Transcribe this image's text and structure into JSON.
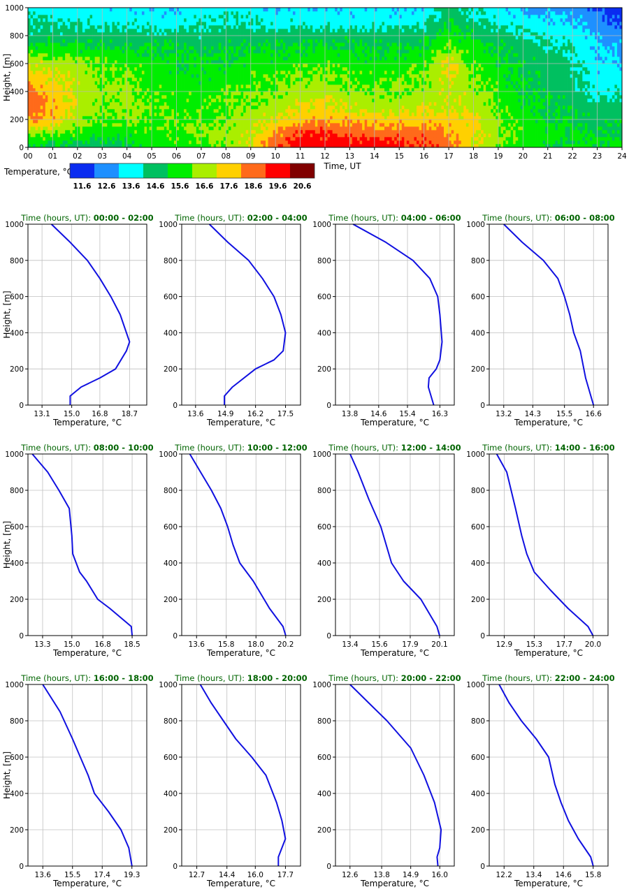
{
  "heatmap": {
    "ylabel": "Height, [m]",
    "xlabel": "Time, UT",
    "x_ticks": [
      "00",
      "01",
      "02",
      "03",
      "04",
      "05",
      "06",
      "07",
      "08",
      "09",
      "10",
      "11",
      "12",
      "13",
      "14",
      "15",
      "16",
      "17",
      "18",
      "19",
      "20",
      "21",
      "22",
      "23",
      "24"
    ],
    "y_ticks": [
      "0",
      "200",
      "400",
      "600",
      "800",
      "1000"
    ],
    "colorbar_label": "Temperature, °C",
    "colorbar_ticks": [
      "11.6",
      "12.6",
      "13.6",
      "14.6",
      "15.6",
      "16.6",
      "17.6",
      "18.6",
      "19.6",
      "20.6"
    ],
    "colors": [
      "#0a2cf0",
      "#1e90ff",
      "#00ffff",
      "#00c060",
      "#00ee00",
      "#aaee00",
      "#ffd000",
      "#ff6a1a",
      "#ff0000",
      "#800000"
    ]
  },
  "profiles_common": {
    "title_prefix": "Time (hours, UT):",
    "xlabel": "Temperature, °C",
    "ylabel": "Height, [m]",
    "y_ticks": [
      "0",
      "200",
      "400",
      "600",
      "800",
      "1000"
    ],
    "line_color": "#1010e0",
    "title_color": "#006400"
  },
  "chart_data": [
    {
      "type": "heatmap",
      "title": "",
      "xlabel": "Time, UT",
      "ylabel": "Height, [m]",
      "xlim": [
        0,
        24
      ],
      "ylim": [
        0,
        1000
      ],
      "colorbar": {
        "label": "Temperature, °C",
        "levels": [
          11.6,
          12.6,
          13.6,
          14.6,
          15.6,
          16.6,
          17.6,
          18.6,
          19.6,
          20.6
        ]
      },
      "heights": [
        0,
        100,
        200,
        300,
        400,
        500,
        600,
        700,
        800,
        900,
        1000
      ],
      "hours": [
        0,
        1,
        2,
        3,
        4,
        5,
        6,
        7,
        8,
        9,
        10,
        11,
        12,
        13,
        14,
        15,
        16,
        17,
        18,
        19,
        20,
        21,
        22,
        23,
        24
      ],
      "values": [
        [
          15.0,
          14.8,
          14.5,
          14.5,
          14.8,
          15.6,
          15.6,
          15.8,
          16.2,
          17.2,
          19.2,
          19.7,
          19.8,
          19.8,
          19.7,
          19.6,
          19.2,
          18.5,
          17.2,
          16.4,
          15.5,
          15.3,
          15.2,
          15.4,
          15.6
        ],
        [
          16.2,
          16.3,
          15.8,
          15.5,
          15.6,
          15.8,
          15.9,
          16.2,
          16.5,
          17.0,
          18.0,
          19.0,
          19.3,
          19.0,
          18.7,
          18.6,
          18.7,
          18.2,
          17.4,
          16.5,
          15.8,
          15.4,
          15.2,
          15.0,
          15.0
        ],
        [
          18.5,
          17.8,
          16.6,
          16.0,
          16.2,
          16.0,
          15.9,
          16.0,
          16.3,
          16.6,
          17.0,
          17.8,
          18.0,
          17.8,
          17.6,
          17.6,
          17.7,
          17.5,
          17.3,
          16.3,
          15.6,
          15.2,
          15.0,
          14.8,
          14.8
        ],
        [
          18.7,
          17.9,
          16.8,
          16.2,
          16.4,
          16.0,
          15.8,
          15.8,
          16.0,
          16.2,
          16.6,
          17.0,
          17.2,
          16.9,
          16.6,
          16.6,
          16.8,
          17.0,
          16.9,
          16.0,
          15.4,
          15.0,
          14.8,
          14.4,
          14.6
        ],
        [
          18.6,
          17.7,
          16.8,
          16.3,
          16.5,
          15.8,
          15.7,
          15.6,
          15.8,
          16.0,
          16.2,
          16.5,
          16.7,
          16.4,
          16.2,
          16.2,
          16.4,
          16.9,
          16.5,
          15.8,
          15.2,
          14.8,
          14.5,
          13.7,
          14.2
        ],
        [
          17.6,
          17.2,
          16.8,
          16.2,
          16.2,
          15.7,
          15.5,
          15.4,
          15.6,
          15.8,
          15.9,
          16.1,
          16.3,
          16.0,
          15.9,
          15.9,
          16.1,
          17.2,
          16.2,
          15.6,
          15.0,
          14.7,
          14.4,
          13.5,
          13.6
        ],
        [
          16.9,
          16.8,
          16.5,
          16.0,
          15.8,
          15.6,
          15.3,
          15.2,
          15.3,
          15.5,
          15.6,
          15.7,
          15.8,
          15.6,
          15.5,
          15.5,
          15.8,
          17.3,
          16.0,
          15.4,
          14.9,
          14.6,
          14.3,
          13.4,
          13.3
        ],
        [
          15.6,
          15.6,
          15.4,
          15.3,
          15.2,
          15.2,
          15.1,
          15.0,
          15.0,
          15.1,
          15.2,
          15.2,
          15.3,
          15.2,
          15.1,
          15.1,
          15.4,
          16.2,
          15.5,
          15.1,
          14.7,
          14.4,
          14.0,
          13.2,
          13.0
        ],
        [
          14.6,
          14.6,
          14.6,
          14.6,
          14.5,
          14.5,
          14.6,
          14.4,
          14.5,
          14.6,
          14.6,
          14.7,
          14.7,
          14.6,
          14.6,
          14.6,
          14.7,
          15.6,
          14.9,
          14.6,
          14.3,
          13.8,
          13.6,
          13.0,
          12.8
        ],
        [
          14.2,
          14.0,
          13.9,
          13.8,
          13.9,
          13.6,
          13.7,
          13.9,
          14.1,
          14.0,
          13.7,
          13.8,
          13.7,
          13.6,
          13.6,
          13.6,
          13.8,
          15.0,
          14.3,
          13.9,
          13.6,
          13.4,
          13.2,
          12.4,
          11.8
        ],
        [
          13.6,
          13.5,
          13.4,
          13.4,
          13.4,
          13.3,
          13.3,
          13.6,
          13.8,
          13.6,
          13.3,
          13.3,
          13.4,
          13.3,
          13.2,
          13.2,
          13.3,
          14.6,
          14.0,
          13.4,
          13.0,
          12.8,
          12.6,
          11.9,
          11.4
        ]
      ]
    },
    {
      "type": "line",
      "title": "00:00 - 02:00",
      "x_ticks": [
        "13.1",
        "15.0",
        "16.8",
        "18.7"
      ],
      "xlim": [
        12.2,
        19.8
      ],
      "ylim": [
        0,
        1000
      ],
      "points": [
        [
          14.9,
          0
        ],
        [
          14.9,
          50
        ],
        [
          15.6,
          100
        ],
        [
          16.8,
          150
        ],
        [
          17.8,
          200
        ],
        [
          18.5,
          300
        ],
        [
          18.7,
          350
        ],
        [
          18.5,
          400
        ],
        [
          18.1,
          500
        ],
        [
          17.5,
          600
        ],
        [
          16.8,
          700
        ],
        [
          16.0,
          800
        ],
        [
          14.9,
          900
        ],
        [
          13.7,
          1000
        ]
      ]
    },
    {
      "type": "line",
      "title": "02:00 - 04:00",
      "x_ticks": [
        "13.6",
        "14.9",
        "16.2",
        "17.5"
      ],
      "xlim": [
        13.0,
        18.15
      ],
      "ylim": [
        0,
        1000
      ],
      "points": [
        [
          14.85,
          0
        ],
        [
          14.85,
          50
        ],
        [
          15.2,
          100
        ],
        [
          16.2,
          200
        ],
        [
          17.0,
          250
        ],
        [
          17.4,
          300
        ],
        [
          17.5,
          400
        ],
        [
          17.3,
          500
        ],
        [
          17.0,
          600
        ],
        [
          16.5,
          700
        ],
        [
          15.9,
          800
        ],
        [
          15.0,
          900
        ],
        [
          14.2,
          1000
        ]
      ]
    },
    {
      "type": "line",
      "title": "04:00 - 06:00",
      "x_ticks": [
        "13.8",
        "14.6",
        "15.4",
        "16.3"
      ],
      "xlim": [
        13.4,
        16.7
      ],
      "ylim": [
        0,
        1000
      ],
      "points": [
        [
          16.13,
          0
        ],
        [
          15.98,
          100
        ],
        [
          16.0,
          150
        ],
        [
          16.2,
          200
        ],
        [
          16.3,
          250
        ],
        [
          16.36,
          350
        ],
        [
          16.3,
          500
        ],
        [
          16.24,
          600
        ],
        [
          16.02,
          700
        ],
        [
          15.55,
          800
        ],
        [
          14.8,
          900
        ],
        [
          13.89,
          1000
        ]
      ]
    },
    {
      "type": "line",
      "title": "06:00 - 08:00",
      "x_ticks": [
        "13.2",
        "14.3",
        "15.5",
        "16.6"
      ],
      "xlim": [
        12.65,
        17.15
      ],
      "ylim": [
        0,
        1000
      ],
      "points": [
        [
          16.6,
          0
        ],
        [
          16.5,
          50
        ],
        [
          16.3,
          150
        ],
        [
          16.1,
          300
        ],
        [
          15.85,
          400
        ],
        [
          15.7,
          500
        ],
        [
          15.5,
          600
        ],
        [
          15.25,
          700
        ],
        [
          14.7,
          800
        ],
        [
          13.9,
          900
        ],
        [
          13.2,
          1000
        ]
      ]
    },
    {
      "type": "line",
      "title": "08:00 - 10:00",
      "x_ticks": [
        "13.3",
        "15.0",
        "16.8",
        "18.5"
      ],
      "xlim": [
        12.45,
        19.35
      ],
      "ylim": [
        0,
        1000
      ],
      "points": [
        [
          18.5,
          0
        ],
        [
          18.45,
          50
        ],
        [
          17.2,
          150
        ],
        [
          16.5,
          200
        ],
        [
          15.85,
          300
        ],
        [
          15.45,
          350
        ],
        [
          15.05,
          450
        ],
        [
          15.0,
          550
        ],
        [
          14.85,
          700
        ],
        [
          14.25,
          800
        ],
        [
          13.6,
          900
        ],
        [
          12.7,
          1000
        ]
      ]
    },
    {
      "type": "line",
      "title": "10:00 - 12:00",
      "x_ticks": [
        "13.6",
        "15.8",
        "18.0",
        "20.2"
      ],
      "xlim": [
        12.5,
        21.3
      ],
      "ylim": [
        0,
        1000
      ],
      "points": [
        [
          20.2,
          0
        ],
        [
          20.0,
          50
        ],
        [
          19.0,
          150
        ],
        [
          17.8,
          300
        ],
        [
          16.8,
          400
        ],
        [
          16.3,
          500
        ],
        [
          15.9,
          600
        ],
        [
          15.4,
          700
        ],
        [
          14.7,
          800
        ],
        [
          13.9,
          900
        ],
        [
          13.1,
          1000
        ]
      ]
    },
    {
      "type": "line",
      "title": "12:00 - 14:00",
      "x_ticks": [
        "13.4",
        "15.6",
        "17.9",
        "20.1"
      ],
      "xlim": [
        12.3,
        21.2
      ],
      "ylim": [
        0,
        1000
      ],
      "points": [
        [
          20.1,
          0
        ],
        [
          19.9,
          50
        ],
        [
          18.7,
          200
        ],
        [
          17.4,
          300
        ],
        [
          16.5,
          400
        ],
        [
          15.7,
          600
        ],
        [
          14.8,
          750
        ],
        [
          14.0,
          900
        ],
        [
          13.4,
          1000
        ]
      ]
    },
    {
      "type": "line",
      "title": "14:00 - 16:00",
      "x_ticks": [
        "12.9",
        "15.3",
        "17.7",
        "20.0"
      ],
      "xlim": [
        11.7,
        21.2
      ],
      "ylim": [
        0,
        1000
      ],
      "points": [
        [
          20.0,
          0
        ],
        [
          19.6,
          50
        ],
        [
          18.0,
          150
        ],
        [
          16.6,
          250
        ],
        [
          15.3,
          350
        ],
        [
          14.7,
          450
        ],
        [
          14.3,
          550
        ],
        [
          13.8,
          700
        ],
        [
          13.1,
          900
        ],
        [
          12.3,
          1000
        ]
      ]
    },
    {
      "type": "line",
      "title": "16:00 - 18:00",
      "x_ticks": [
        "13.6",
        "15.5",
        "17.4",
        "19.3"
      ],
      "xlim": [
        12.65,
        20.25
      ],
      "ylim": [
        0,
        1000
      ],
      "points": [
        [
          19.3,
          0
        ],
        [
          19.1,
          100
        ],
        [
          18.6,
          200
        ],
        [
          17.8,
          300
        ],
        [
          16.9,
          400
        ],
        [
          16.5,
          500
        ],
        [
          16.0,
          600
        ],
        [
          15.5,
          700
        ],
        [
          14.7,
          850
        ],
        [
          13.6,
          1000
        ]
      ]
    },
    {
      "type": "line",
      "title": "18:00 - 20:00",
      "x_ticks": [
        "12.7",
        "14.4",
        "16.0",
        "17.7"
      ],
      "xlim": [
        11.85,
        18.55
      ],
      "ylim": [
        0,
        1000
      ],
      "points": [
        [
          17.3,
          0
        ],
        [
          17.3,
          50
        ],
        [
          17.7,
          150
        ],
        [
          17.5,
          250
        ],
        [
          17.2,
          350
        ],
        [
          16.6,
          500
        ],
        [
          15.8,
          600
        ],
        [
          14.9,
          700
        ],
        [
          14.2,
          800
        ],
        [
          13.5,
          900
        ],
        [
          12.9,
          1000
        ]
      ]
    },
    {
      "type": "line",
      "title": "20:00 - 22:00",
      "x_ticks": [
        "12.6",
        "13.8",
        "14.9",
        "16.0"
      ],
      "xlim": [
        12.05,
        16.55
      ],
      "ylim": [
        0,
        1000
      ],
      "points": [
        [
          15.93,
          0
        ],
        [
          15.9,
          50
        ],
        [
          16.0,
          100
        ],
        [
          16.05,
          200
        ],
        [
          15.8,
          350
        ],
        [
          15.4,
          500
        ],
        [
          14.9,
          650
        ],
        [
          14.0,
          800
        ],
        [
          13.3,
          900
        ],
        [
          12.6,
          1000
        ]
      ]
    },
    {
      "type": "line",
      "title": "22:00 - 24:00",
      "x_ticks": [
        "12.2",
        "13.4",
        "14.6",
        "15.8"
      ],
      "xlim": [
        11.6,
        16.4
      ],
      "ylim": [
        0,
        1000
      ],
      "points": [
        [
          15.8,
          0
        ],
        [
          15.7,
          50
        ],
        [
          15.2,
          150
        ],
        [
          14.8,
          250
        ],
        [
          14.5,
          350
        ],
        [
          14.25,
          450
        ],
        [
          14.0,
          600
        ],
        [
          13.5,
          700
        ],
        [
          12.9,
          800
        ],
        [
          12.4,
          900
        ],
        [
          12.0,
          1000
        ]
      ]
    }
  ]
}
